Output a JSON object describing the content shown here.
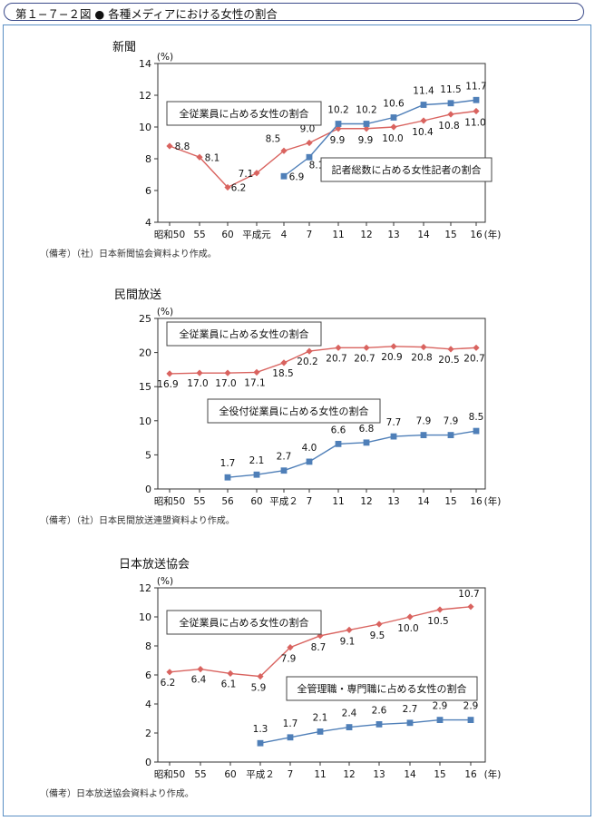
{
  "header": {
    "title": "第１−７−２図 ● 各種メディアにおける女性の割合"
  },
  "chart_data": [
    {
      "type": "line",
      "title": "新聞",
      "unit": "(%)",
      "year_unit": "(年)",
      "ylim": [
        4,
        14
      ],
      "yticks": [
        4,
        6,
        8,
        10,
        12,
        14
      ],
      "categories": [
        "昭和50",
        "55",
        "60",
        "平成元",
        "4",
        "7",
        "11",
        "12",
        "13",
        "14",
        "15",
        "16"
      ],
      "series": [
        {
          "name": "全従業員に占める女性の割合",
          "color": "#d9635f",
          "marker": "diamond",
          "values": [
            8.8,
            8.1,
            6.2,
            7.1,
            8.5,
            9.0,
            9.9,
            9.9,
            10.0,
            10.4,
            10.8,
            11.0
          ],
          "labels": [
            "8.8",
            "8.1",
            "6.2",
            "7.1",
            "8.5",
            "9.0",
            "9.9",
            "9.9",
            "10.0",
            "10.4",
            "10.8",
            "11.0"
          ]
        },
        {
          "name": "記者総数に占める女性記者の割合",
          "color": "#4f7fb8",
          "marker": "square",
          "values": [
            null,
            null,
            null,
            null,
            6.9,
            8.1,
            10.2,
            10.2,
            10.6,
            11.4,
            11.5,
            11.7
          ],
          "labels": [
            "",
            "",
            "",
            "",
            "6.9",
            "8.1",
            "10.2",
            "10.2",
            "10.6",
            "11.4",
            "11.5",
            "11.7"
          ]
        }
      ],
      "source": "（備考）（社）日本新聞協会資料より作成。"
    },
    {
      "type": "line",
      "title": "民間放送",
      "unit": "(%)",
      "year_unit": "(年)",
      "ylim": [
        0,
        25
      ],
      "yticks": [
        0,
        5,
        10,
        15,
        20,
        25
      ],
      "categories": [
        "昭和50",
        "55",
        "56",
        "60",
        "平成２",
        "7",
        "11",
        "12",
        "13",
        "14",
        "15",
        "16"
      ],
      "series": [
        {
          "name": "全従業員に占める女性の割合",
          "color": "#d9635f",
          "marker": "diamond",
          "values": [
            16.9,
            17.0,
            17.0,
            17.1,
            18.5,
            20.2,
            20.7,
            20.7,
            20.9,
            20.8,
            20.5,
            20.7
          ],
          "labels": [
            "16.9",
            "17.0",
            "17.0",
            "17.1",
            "18.5",
            "20.2",
            "20.7",
            "20.7",
            "20.9",
            "20.8",
            "20.5",
            "20.7"
          ]
        },
        {
          "name": "全役付従業員に占める女性の割合",
          "color": "#4f7fb8",
          "marker": "square",
          "values": [
            null,
            null,
            1.7,
            2.1,
            2.7,
            4.0,
            6.6,
            6.8,
            7.7,
            7.9,
            7.9,
            8.5
          ],
          "labels": [
            "",
            "",
            "1.7",
            "2.1",
            "2.7",
            "4.0",
            "6.6",
            "6.8",
            "7.7",
            "7.9",
            "7.9",
            "8.5"
          ]
        }
      ],
      "source": "（備考）（社）日本民間放送連盟資料より作成。"
    },
    {
      "type": "line",
      "title": "日本放送協会",
      "unit": "(%)",
      "year_unit": "(年)",
      "ylim": [
        0,
        12
      ],
      "yticks": [
        0,
        2,
        4,
        6,
        8,
        10,
        12
      ],
      "categories": [
        "昭和50",
        "55",
        "60",
        "平成２",
        "7",
        "11",
        "12",
        "13",
        "14",
        "15",
        "16"
      ],
      "series": [
        {
          "name": "全従業員に占める女性の割合",
          "color": "#d9635f",
          "marker": "diamond",
          "values": [
            6.2,
            6.4,
            6.1,
            5.9,
            7.9,
            8.7,
            9.1,
            9.5,
            10.0,
            10.5,
            10.7
          ],
          "labels": [
            "6.2",
            "6.4",
            "6.1",
            "5.9",
            "7.9",
            "8.7",
            "9.1",
            "9.5",
            "10.0",
            "10.5",
            "10.7"
          ]
        },
        {
          "name": "全管理職・専門職に占める女性の割合",
          "color": "#4f7fb8",
          "marker": "square",
          "values": [
            null,
            null,
            null,
            1.3,
            1.7,
            2.1,
            2.4,
            2.6,
            2.7,
            2.9,
            2.9
          ],
          "labels": [
            "",
            "",
            "",
            "1.3",
            "1.7",
            "2.1",
            "2.4",
            "2.6",
            "2.7",
            "2.9",
            "2.9"
          ]
        }
      ],
      "source": "（備考）日本放送協会資料より作成。"
    }
  ]
}
